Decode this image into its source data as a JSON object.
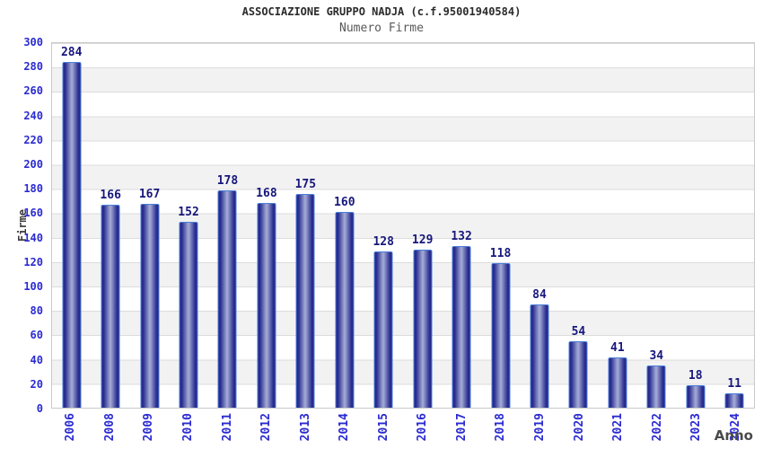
{
  "header": {
    "title": "ASSOCIAZIONE GRUPPO NADJA (c.f.95001940584)",
    "subtitle": "Numero Firme"
  },
  "chart_data": {
    "type": "bar",
    "title": "Numero Firme",
    "categories": [
      "2006",
      "2008",
      "2009",
      "2010",
      "2011",
      "2012",
      "2013",
      "2014",
      "2015",
      "2016",
      "2017",
      "2018",
      "2019",
      "2020",
      "2021",
      "2022",
      "2023",
      "2024"
    ],
    "values": [
      284,
      166,
      167,
      152,
      178,
      168,
      175,
      160,
      128,
      129,
      132,
      118,
      84,
      54,
      41,
      34,
      18,
      11
    ],
    "xlabel": "Anno",
    "ylabel": "Firme",
    "ylim": [
      0,
      300
    ],
    "ytick_step": 20,
    "grid": "horizontal bands, alternating white and light gray every 20 units",
    "legend_position": "none",
    "bar_labels_shown": true
  },
  "colors": {
    "axis_tick_text": "#2a2ad2",
    "bar_value_text": "#17177d",
    "bar_border": "#4a7fd9",
    "bar_gradient_dark": "#23268a",
    "bar_gradient_light": "#a6abd8",
    "band_gray": "#f2f2f2",
    "grid_line": "#dcdcdc",
    "plot_border": "#c9c9c9",
    "title_text": "#2b2b2b",
    "subtitle_text": "#595959",
    "axis_title_text": "#3a3a3a"
  }
}
